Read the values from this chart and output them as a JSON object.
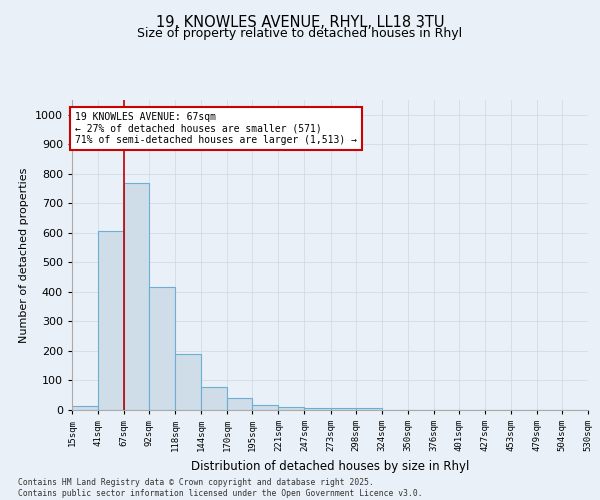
{
  "title_line1": "19, KNOWLES AVENUE, RHYL, LL18 3TU",
  "title_line2": "Size of property relative to detached houses in Rhyl",
  "xlabel": "Distribution of detached houses by size in Rhyl",
  "ylabel": "Number of detached properties",
  "bin_edges": [
    15,
    41,
    67,
    92,
    118,
    144,
    170,
    195,
    221,
    247,
    273,
    298,
    324,
    350,
    376,
    401,
    427,
    453,
    479,
    504,
    530
  ],
  "bin_counts": [
    15,
    605,
    770,
    415,
    190,
    78,
    40,
    18,
    10,
    8,
    8,
    8,
    0,
    0,
    0,
    0,
    0,
    0,
    0,
    0
  ],
  "property_size": 67,
  "ylim": [
    0,
    1050
  ],
  "bar_color": "#cfdde8",
  "bar_edge_color": "#6baed6",
  "vline_color": "#c00000",
  "annotation_text": "19 KNOWLES AVENUE: 67sqm\n← 27% of detached houses are smaller (571)\n71% of semi-detached houses are larger (1,513) →",
  "annotation_box_color": "#cc0000",
  "annotation_bg": "#ffffff",
  "grid_color": "#c8d8e8",
  "background_color": "#eaf0f7",
  "footnote": "Contains HM Land Registry data © Crown copyright and database right 2025.\nContains public sector information licensed under the Open Government Licence v3.0.",
  "tick_labels": [
    "15sqm",
    "41sqm",
    "67sqm",
    "92sqm",
    "118sqm",
    "144sqm",
    "170sqm",
    "195sqm",
    "221sqm",
    "247sqm",
    "273sqm",
    "298sqm",
    "324sqm",
    "350sqm",
    "376sqm",
    "401sqm",
    "427sqm",
    "453sqm",
    "479sqm",
    "504sqm",
    "530sqm"
  ],
  "yticks": [
    0,
    100,
    200,
    300,
    400,
    500,
    600,
    700,
    800,
    900,
    1000
  ]
}
